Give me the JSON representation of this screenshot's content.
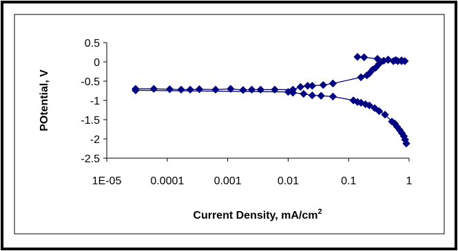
{
  "chart_data": {
    "type": "scatter",
    "title": "",
    "xlabel": "Current Density, mA/cm",
    "xlabel_superscript": "2",
    "ylabel": "POtential, V",
    "x_scale": "log",
    "xlim": [
      1e-05,
      1
    ],
    "ylim": [
      -2.5,
      0.5
    ],
    "x_tick_labels": [
      "1E-05",
      "0.0001",
      "0.001",
      "0.01",
      "0.1",
      "1"
    ],
    "x_tick_values": [
      1e-05,
      0.0001,
      0.001,
      0.01,
      0.1,
      1
    ],
    "y_tick_labels": [
      "0.5",
      "0",
      "-0.5",
      "-1",
      "-1.5",
      "-2",
      "-2.5"
    ],
    "y_tick_values": [
      0.5,
      0,
      -0.5,
      -1,
      -1.5,
      -2,
      -2.5
    ],
    "grid": false,
    "legend": "none",
    "marker": "diamond",
    "series": [
      {
        "color": "#000080",
        "points": [
          {
            "x": 3e-05,
            "y": -0.7
          },
          {
            "x": 6e-05,
            "y": -0.7
          },
          {
            "x": 0.00011,
            "y": -0.71
          },
          {
            "x": 0.00017,
            "y": -0.72
          },
          {
            "x": 0.00024,
            "y": -0.72
          },
          {
            "x": 0.00034,
            "y": -0.71
          },
          {
            "x": 0.00063,
            "y": -0.72
          },
          {
            "x": 0.00112,
            "y": -0.7
          },
          {
            "x": 0.0018,
            "y": -0.73
          },
          {
            "x": 0.0025,
            "y": -0.72
          },
          {
            "x": 0.0035,
            "y": -0.72
          },
          {
            "x": 0.006,
            "y": -0.72
          },
          {
            "x": 0.012,
            "y": -0.72
          },
          {
            "x": 0.016,
            "y": -0.65
          },
          {
            "x": 0.021,
            "y": -0.62
          },
          {
            "x": 0.025,
            "y": -0.62
          },
          {
            "x": 0.038,
            "y": -0.6
          },
          {
            "x": 0.055,
            "y": -0.56
          },
          {
            "x": 0.16,
            "y": -0.4
          },
          {
            "x": 0.2,
            "y": -0.35
          },
          {
            "x": 0.22,
            "y": -0.3
          },
          {
            "x": 0.25,
            "y": -0.2
          },
          {
            "x": 0.28,
            "y": -0.15
          },
          {
            "x": 0.32,
            "y": -0.05
          },
          {
            "x": 0.38,
            "y": 0.03
          },
          {
            "x": 0.45,
            "y": 0.05
          },
          {
            "x": 0.55,
            "y": 0.02
          },
          {
            "x": 0.65,
            "y": 0.02
          },
          {
            "x": 0.75,
            "y": 0.02
          },
          {
            "x": 0.85,
            "y": 0.02
          },
          {
            "x": 0.75,
            "y": 0.04
          },
          {
            "x": 0.6,
            "y": 0.05
          },
          {
            "x": 0.45,
            "y": 0.06
          },
          {
            "x": 0.3,
            "y": 0.08
          },
          {
            "x": 0.18,
            "y": 0.12
          },
          {
            "x": 0.14,
            "y": 0.13
          }
        ]
      },
      {
        "color": "#000080",
        "points": [
          {
            "x": 3e-05,
            "y": -0.74
          },
          {
            "x": 0.01,
            "y": -0.78
          },
          {
            "x": 0.012,
            "y": -0.8
          },
          {
            "x": 0.018,
            "y": -0.83
          },
          {
            "x": 0.025,
            "y": -0.87
          },
          {
            "x": 0.035,
            "y": -0.88
          },
          {
            "x": 0.055,
            "y": -0.9
          },
          {
            "x": 0.12,
            "y": -1.0
          },
          {
            "x": 0.14,
            "y": -1.04
          },
          {
            "x": 0.16,
            "y": -1.06
          },
          {
            "x": 0.19,
            "y": -1.1
          },
          {
            "x": 0.22,
            "y": -1.13
          },
          {
            "x": 0.27,
            "y": -1.2
          },
          {
            "x": 0.32,
            "y": -1.28
          },
          {
            "x": 0.4,
            "y": -1.37
          },
          {
            "x": 0.52,
            "y": -1.55
          },
          {
            "x": 0.58,
            "y": -1.6
          },
          {
            "x": 0.63,
            "y": -1.68
          },
          {
            "x": 0.7,
            "y": -1.77
          },
          {
            "x": 0.76,
            "y": -1.85
          },
          {
            "x": 0.82,
            "y": -1.93
          },
          {
            "x": 0.86,
            "y": -2.02
          },
          {
            "x": 0.9,
            "y": -2.12
          }
        ]
      }
    ]
  }
}
